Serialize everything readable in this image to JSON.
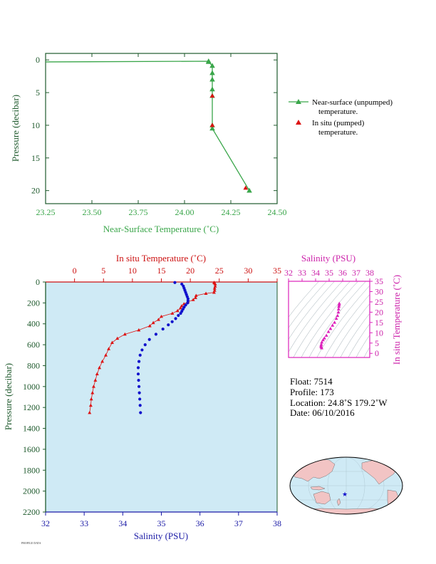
{
  "footer_note": "PROFILE DATA",
  "colors": {
    "green": "#3aa64a",
    "dark_green": "#1f5a2d",
    "red": "#dd1111",
    "blue": "#1010cc",
    "magenta": "#dd22bb",
    "plot_bg": "#cfeaf5"
  },
  "legend": {
    "near_surface_line1": "Near-surface (unpumped)",
    "near_surface_line2": "temperature.",
    "in_situ_line1": "In situ (pumped)",
    "in_situ_line2": "temperature."
  },
  "info": {
    "float": "Float:  7514",
    "profile": "Profile:  173",
    "location": "Location:  24.8˚S  179.2˚W",
    "date": "Date:  06/10/2016"
  },
  "chart_data": [
    {
      "type": "line",
      "xlabel": "Near-Surface Temperature (˚C)",
      "ylabel": "Pressure (decibar)",
      "xlim": [
        23.25,
        24.5
      ],
      "ylim": [
        22,
        -1
      ],
      "x_ticks": [
        "23.25",
        "23.50",
        "23.75",
        "24.00",
        "24.25",
        "24.50"
      ],
      "y_ticks": [
        "0",
        "5",
        "10",
        "15",
        "20"
      ],
      "grid": false,
      "legend_position": "right",
      "series": [
        {
          "name": "Near-surface (unpumped) temperature.",
          "x": [
            23.25,
            24.13,
            24.13,
            24.15,
            24.15,
            24.15,
            24.15,
            24.15,
            24.15,
            24.15,
            24.35
          ],
          "y": [
            0.3,
            0.2,
            0.3,
            0.9,
            2.0,
            3.0,
            4.5,
            5.5,
            10.0,
            10.5,
            20.0
          ]
        },
        {
          "name": "In situ (pumped) temperature.",
          "x": [
            24.15,
            24.15,
            24.33
          ],
          "y": [
            5.5,
            10.0,
            19.6
          ]
        }
      ]
    },
    {
      "type": "scatter",
      "x_top_label": "In situ Temperature (˚C)",
      "x_bottom_label": "Salinity (PSU)",
      "ylabel": "Pressure (decibar)",
      "temperature_lim": [
        -5,
        35
      ],
      "salinity_lim": [
        32,
        38
      ],
      "pressure_lim": [
        2200,
        0
      ],
      "temperature_ticks": [
        "0",
        "5",
        "10",
        "15",
        "20",
        "25",
        "30",
        "35"
      ],
      "salinity_ticks": [
        "32",
        "33",
        "34",
        "35",
        "36",
        "37",
        "38"
      ],
      "pressure_ticks": [
        "0",
        "200",
        "400",
        "600",
        "800",
        "1000",
        "1200",
        "1400",
        "1600",
        "1800",
        "2000",
        "2200"
      ],
      "grid": false,
      "series": [
        {
          "name": "In situ Temperature",
          "pressure": [
            5,
            10,
            20,
            40,
            60,
            80,
            100,
            110,
            130,
            150,
            170,
            190,
            210,
            230,
            250,
            275,
            300,
            330,
            360,
            390,
            420,
            460,
            500,
            540,
            580,
            640,
            700,
            760,
            820,
            880,
            940,
            1000,
            1060,
            1120,
            1180,
            1250
          ],
          "values": [
            24.1,
            24.2,
            24.3,
            24.3,
            24.2,
            24.2,
            24.1,
            22.7,
            21.0,
            20.9,
            20.5,
            19.6,
            18.9,
            18.5,
            18.3,
            17.8,
            16.9,
            15.0,
            14.5,
            13.6,
            13.0,
            11.1,
            8.7,
            7.4,
            6.5,
            5.9,
            5.4,
            4.8,
            4.3,
            3.9,
            3.6,
            3.3,
            3.1,
            2.9,
            2.8,
            2.6
          ]
        },
        {
          "name": "Salinity",
          "pressure": [
            5,
            20,
            40,
            60,
            80,
            100,
            120,
            140,
            160,
            180,
            200,
            220,
            240,
            260,
            280,
            300,
            320,
            350,
            380,
            410,
            450,
            500,
            550,
            600,
            650,
            700,
            760,
            820,
            880,
            940,
            1000,
            1060,
            1120,
            1180,
            1250
          ],
          "values": [
            35.35,
            35.53,
            35.57,
            35.59,
            35.61,
            35.63,
            35.65,
            35.67,
            35.69,
            35.69,
            35.68,
            35.63,
            35.59,
            35.56,
            35.53,
            35.5,
            35.44,
            35.37,
            35.28,
            35.18,
            35.04,
            34.86,
            34.69,
            34.58,
            34.5,
            34.45,
            34.42,
            34.4,
            34.4,
            34.41,
            34.42,
            34.43,
            34.44,
            34.45,
            34.46
          ]
        }
      ]
    },
    {
      "type": "scatter",
      "xlabel": "Salinity (PSU)",
      "ylabel": "In situ Temperature (˚C)",
      "xlim": [
        32,
        38
      ],
      "ylim": [
        -2,
        35
      ],
      "x_ticks": [
        "32",
        "33",
        "34",
        "35",
        "36",
        "37",
        "38"
      ],
      "y_ticks": [
        "0",
        "5",
        "10",
        "15",
        "20",
        "25",
        "30",
        "35"
      ],
      "grid": false,
      "series": [
        {
          "name": "T-S",
          "x": [
            34.45,
            34.42,
            34.4,
            34.42,
            34.46,
            34.55,
            34.65,
            34.8,
            34.95,
            35.1,
            35.25,
            35.4,
            35.53,
            35.62,
            35.68,
            35.7,
            35.72,
            35.74,
            35.75
          ],
          "y": [
            2.6,
            3.1,
            3.6,
            4.3,
            5.4,
            6.5,
            7.4,
            8.7,
            10.5,
            12.0,
            13.6,
            15.0,
            16.9,
            18.3,
            20.0,
            21.5,
            22.7,
            23.5,
            24.2
          ]
        }
      ]
    }
  ]
}
